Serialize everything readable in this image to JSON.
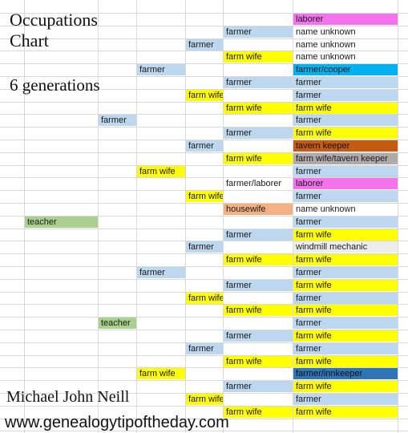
{
  "title_lines": [
    "Occupations",
    "Chart"
  ],
  "subtitle": "6 generations",
  "author": "Michael John Neill",
  "website": "www.genealogytipoftheday.com",
  "colors": {
    "magenta": "#f472ec",
    "light_blue": "#bdd7ee",
    "yellow": "#ffff00",
    "cyan": "#00b0f0",
    "rust": "#c55a11",
    "gray": "#aeaaaa",
    "salmon": "#f4b183",
    "light_gray": "#ededed",
    "green": "#a9d08e",
    "dark_blue": "#2e75b6",
    "white": "#ffffff"
  },
  "generations": {
    "gen6": [
      {
        "label": "laborer",
        "color": "magenta"
      },
      {
        "label": "name unknown",
        "color": "white"
      },
      {
        "label": "name unknown",
        "color": "white"
      },
      {
        "label": "name unknown",
        "color": "white"
      },
      {
        "label": "farmer/cooper",
        "color": "cyan"
      },
      {
        "label": "farmer",
        "color": "light_blue"
      },
      {
        "label": "farmer",
        "color": "light_blue"
      },
      {
        "label": "farm wife",
        "color": "yellow"
      },
      {
        "label": "farmer",
        "color": "light_blue"
      },
      {
        "label": "farm wife",
        "color": "yellow"
      },
      {
        "label": "tavern keeper",
        "color": "rust"
      },
      {
        "label": "farm wife/tavern keeper",
        "color": "gray"
      },
      {
        "label": "farmer",
        "color": "light_blue"
      },
      {
        "label": "laborer",
        "color": "magenta"
      },
      {
        "label": "farmer",
        "color": "light_blue"
      },
      {
        "label": "name unknown",
        "color": "white"
      },
      {
        "label": "farmer",
        "color": "light_blue"
      },
      {
        "label": "farm wife",
        "color": "yellow"
      },
      {
        "label": "windmill mechanic",
        "color": "light_gray"
      },
      {
        "label": "farm wife",
        "color": "yellow"
      },
      {
        "label": "farmer",
        "color": "light_blue"
      },
      {
        "label": "farm wife",
        "color": "yellow"
      },
      {
        "label": "farmer",
        "color": "light_blue"
      },
      {
        "label": "farm wife",
        "color": "yellow"
      },
      {
        "label": "farmer",
        "color": "light_blue"
      },
      {
        "label": "farm wife",
        "color": "yellow"
      },
      {
        "label": "farmer",
        "color": "light_blue"
      },
      {
        "label": "farm wife",
        "color": "yellow"
      },
      {
        "label": "farmer/innkeeper",
        "color": "dark_blue"
      },
      {
        "label": "farm wife",
        "color": "yellow"
      },
      {
        "label": "farmer",
        "color": "light_blue"
      },
      {
        "label": "farm wife",
        "color": "yellow"
      }
    ],
    "gen5": [
      {
        "label": "farmer",
        "color": "light_blue"
      },
      {
        "label": "farm wife",
        "color": "yellow"
      },
      {
        "label": "farmer",
        "color": "light_blue"
      },
      {
        "label": "farm wife",
        "color": "yellow"
      },
      {
        "label": "farmer",
        "color": "light_blue"
      },
      {
        "label": "farm wife",
        "color": "yellow"
      },
      {
        "label": "farmer/laborer",
        "color": "white"
      },
      {
        "label": "housewife",
        "color": "salmon"
      },
      {
        "label": "farmer",
        "color": "light_blue"
      },
      {
        "label": "farm wife",
        "color": "yellow"
      },
      {
        "label": "farmer",
        "color": "light_blue"
      },
      {
        "label": "farm wife",
        "color": "yellow"
      },
      {
        "label": "farmer",
        "color": "light_blue"
      },
      {
        "label": "farm wife",
        "color": "yellow"
      },
      {
        "label": "farmer",
        "color": "light_blue"
      },
      {
        "label": "farm wife",
        "color": "yellow"
      }
    ],
    "gen4": [
      {
        "label": "farmer",
        "color": "light_blue"
      },
      {
        "label": "farm wife",
        "color": "yellow"
      },
      {
        "label": "farmer",
        "color": "light_blue"
      },
      {
        "label": "farm wife",
        "color": "yellow"
      },
      {
        "label": "farmer",
        "color": "light_blue"
      },
      {
        "label": "farm wife",
        "color": "yellow"
      },
      {
        "label": "farmer",
        "color": "light_blue"
      },
      {
        "label": "farm wife",
        "color": "yellow"
      }
    ],
    "gen3": [
      {
        "label": "farmer",
        "color": "light_blue"
      },
      {
        "label": "farm wife",
        "color": "yellow"
      },
      {
        "label": "farmer",
        "color": "light_blue"
      },
      {
        "label": "farm wife",
        "color": "yellow"
      }
    ],
    "gen2": [
      {
        "label": "farmer",
        "color": "light_blue"
      },
      {
        "label": "teacher",
        "color": "green"
      }
    ],
    "gen1": [
      {
        "label": "teacher",
        "color": "green"
      }
    ]
  }
}
